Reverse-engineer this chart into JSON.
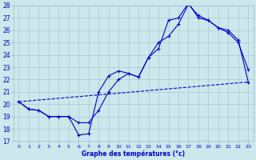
{
  "xlabel": "Graphe des températures (°c)",
  "xlim": [
    -0.5,
    23.5
  ],
  "ylim": [
    17,
    28
  ],
  "yticks": [
    17,
    18,
    19,
    20,
    21,
    22,
    23,
    24,
    25,
    26,
    27,
    28
  ],
  "xticks": [
    0,
    1,
    2,
    3,
    4,
    5,
    6,
    7,
    8,
    9,
    10,
    11,
    12,
    13,
    14,
    15,
    16,
    17,
    18,
    19,
    20,
    21,
    22,
    23
  ],
  "background_color": "#cce8ec",
  "line_color": "#0000cc",
  "grid_color": "#aabbcc",
  "line1_x": [
    0,
    1,
    2,
    3,
    4,
    5,
    6,
    7,
    8,
    9,
    10,
    11,
    12,
    13,
    14,
    15,
    16,
    17,
    18,
    19,
    20,
    21,
    22,
    23
  ],
  "line1_y": [
    20.2,
    19.6,
    19.5,
    19.0,
    19.0,
    19.0,
    17.5,
    17.6,
    21.0,
    22.3,
    22.7,
    22.5,
    22.2,
    23.8,
    25.0,
    25.5,
    26.5,
    28.1,
    27.2,
    26.8,
    26.2,
    25.8,
    25.0,
    22.8
  ],
  "line2_x": [
    0,
    1,
    2,
    3,
    4,
    5,
    6,
    7,
    8,
    9,
    10,
    11,
    12,
    13,
    14,
    15,
    16,
    17,
    18,
    19,
    20,
    21,
    22,
    23
  ],
  "line2_y": [
    20.2,
    19.6,
    19.5,
    19.0,
    19.0,
    19.0,
    18.5,
    18.5,
    19.5,
    21.0,
    22.0,
    22.5,
    22.2,
    23.8,
    24.5,
    26.8,
    27.0,
    28.2,
    27.0,
    26.8,
    26.2,
    26.0,
    25.2,
    21.8
  ],
  "line3_x": [
    0,
    23
  ],
  "line3_y": [
    20.2,
    21.8
  ]
}
